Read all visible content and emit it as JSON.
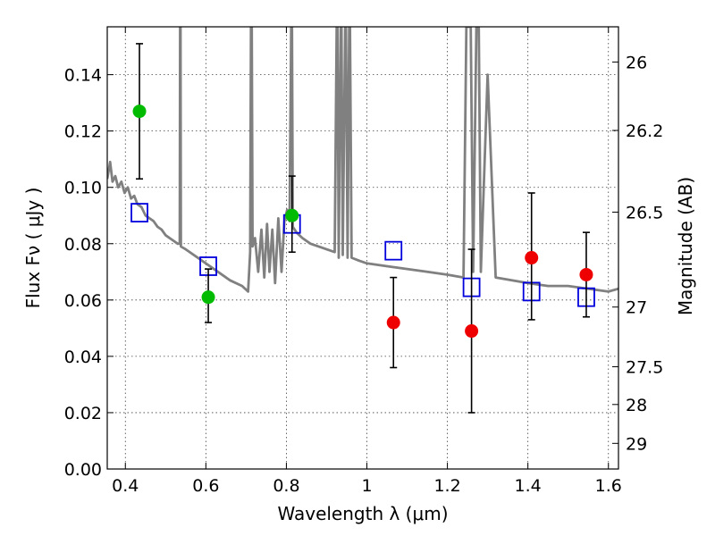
{
  "chart_data": {
    "type": "scatter",
    "title": "",
    "xlabel": "Wavelength  λ (μm)",
    "ylabel": "Flux  Fν  ( μJy )",
    "ylabel_right": "Magnitude (AB)",
    "xlim": [
      0.355,
      1.625
    ],
    "ylim": [
      0.0,
      0.157
    ],
    "grid": true,
    "x_ticks": [
      0.4,
      0.6,
      0.8,
      1.0,
      1.2,
      1.4,
      1.6
    ],
    "x_tick_labels": [
      "0.4",
      "0.6",
      "0.8",
      "1",
      "1.2",
      "1.4",
      "1.6"
    ],
    "y_ticks": [
      0.0,
      0.02,
      0.04,
      0.06,
      0.08,
      0.1,
      0.12,
      0.14
    ],
    "y_tick_labels": [
      "0.00",
      "0.02",
      "0.04",
      "0.06",
      "0.08",
      "0.10",
      "0.12",
      "0.14"
    ],
    "right_ticks": [
      {
        "label": "26",
        "flux": 0.1445
      },
      {
        "label": "26.2",
        "flux": 0.1202
      },
      {
        "label": "26.5",
        "flux": 0.0912
      },
      {
        "label": "27",
        "flux": 0.0575
      },
      {
        "label": "27.5",
        "flux": 0.0363
      },
      {
        "label": "28",
        "flux": 0.0229
      },
      {
        "label": "29",
        "flux": 0.0091
      }
    ],
    "colors": {
      "green": "#00bb00",
      "red": "#ee0000",
      "model_box": "#0000dd",
      "sed": "#808080"
    },
    "series": [
      {
        "marker": "green-circle",
        "points": [
          {
            "x": 0.435,
            "y": 0.127,
            "err_low": 0.103,
            "err_high": 0.151
          },
          {
            "x": 0.606,
            "y": 0.061,
            "err_low": 0.052,
            "err_high": 0.071
          },
          {
            "x": 0.814,
            "y": 0.09,
            "err_low": 0.077,
            "err_high": 0.104
          }
        ]
      },
      {
        "marker": "red-circle",
        "points": [
          {
            "x": 1.066,
            "y": 0.052,
            "err_low": 0.036,
            "err_high": 0.068
          },
          {
            "x": 1.26,
            "y": 0.049,
            "err_low": 0.02,
            "err_high": 0.078
          },
          {
            "x": 1.409,
            "y": 0.075,
            "err_low": 0.053,
            "err_high": 0.098
          },
          {
            "x": 1.545,
            "y": 0.069,
            "err_low": 0.054,
            "err_high": 0.084
          }
        ]
      },
      {
        "marker": "blue-open-square",
        "points": [
          {
            "x": 0.435,
            "y": 0.091
          },
          {
            "x": 0.606,
            "y": 0.072
          },
          {
            "x": 0.814,
            "y": 0.087
          },
          {
            "x": 1.066,
            "y": 0.0775
          },
          {
            "x": 1.26,
            "y": 0.0645
          },
          {
            "x": 1.409,
            "y": 0.063
          },
          {
            "x": 1.545,
            "y": 0.061
          }
        ]
      },
      {
        "marker": "gray-line",
        "points": [
          [
            0.355,
            0.103
          ],
          [
            0.362,
            0.109
          ],
          [
            0.368,
            0.102
          ],
          [
            0.375,
            0.104
          ],
          [
            0.382,
            0.1
          ],
          [
            0.39,
            0.102
          ],
          [
            0.398,
            0.098
          ],
          [
            0.406,
            0.1
          ],
          [
            0.414,
            0.096
          ],
          [
            0.422,
            0.097
          ],
          [
            0.43,
            0.094
          ],
          [
            0.44,
            0.093
          ],
          [
            0.45,
            0.09
          ],
          [
            0.46,
            0.089
          ],
          [
            0.47,
            0.088
          ],
          [
            0.48,
            0.086
          ],
          [
            0.49,
            0.085
          ],
          [
            0.5,
            0.083
          ],
          [
            0.51,
            0.082
          ],
          [
            0.52,
            0.081
          ],
          [
            0.53,
            0.08
          ],
          [
            0.535,
            0.08
          ],
          [
            0.536,
            0.157
          ],
          [
            0.537,
            0.157
          ],
          [
            0.538,
            0.079
          ],
          [
            0.55,
            0.078
          ],
          [
            0.57,
            0.076
          ],
          [
            0.6,
            0.073
          ],
          [
            0.63,
            0.07
          ],
          [
            0.66,
            0.067
          ],
          [
            0.69,
            0.065
          ],
          [
            0.705,
            0.063
          ],
          [
            0.71,
            0.077
          ],
          [
            0.712,
            0.157
          ],
          [
            0.714,
            0.157
          ],
          [
            0.716,
            0.079
          ],
          [
            0.722,
            0.082
          ],
          [
            0.73,
            0.07
          ],
          [
            0.738,
            0.085
          ],
          [
            0.745,
            0.068
          ],
          [
            0.752,
            0.087
          ],
          [
            0.758,
            0.07
          ],
          [
            0.765,
            0.085
          ],
          [
            0.772,
            0.066
          ],
          [
            0.78,
            0.089
          ],
          [
            0.788,
            0.07
          ],
          [
            0.795,
            0.088
          ],
          [
            0.802,
            0.092
          ],
          [
            0.808,
            0.088
          ],
          [
            0.812,
            0.157
          ],
          [
            0.814,
            0.157
          ],
          [
            0.816,
            0.086
          ],
          [
            0.825,
            0.084
          ],
          [
            0.84,
            0.082
          ],
          [
            0.86,
            0.08
          ],
          [
            0.88,
            0.079
          ],
          [
            0.9,
            0.078
          ],
          [
            0.92,
            0.077
          ],
          [
            0.925,
            0.157
          ],
          [
            0.927,
            0.157
          ],
          [
            0.93,
            0.075
          ],
          [
            0.935,
            0.157
          ],
          [
            0.937,
            0.157
          ],
          [
            0.94,
            0.076
          ],
          [
            0.946,
            0.157
          ],
          [
            0.948,
            0.157
          ],
          [
            0.952,
            0.075
          ],
          [
            0.956,
            0.157
          ],
          [
            0.958,
            0.157
          ],
          [
            0.962,
            0.075
          ],
          [
            0.98,
            0.074
          ],
          [
            1.0,
            0.073
          ],
          [
            1.05,
            0.072
          ],
          [
            1.1,
            0.071
          ],
          [
            1.15,
            0.07
          ],
          [
            1.2,
            0.069
          ],
          [
            1.24,
            0.068
          ],
          [
            1.247,
            0.157
          ],
          [
            1.258,
            0.157
          ],
          [
            1.264,
            0.07
          ],
          [
            1.272,
            0.157
          ],
          [
            1.278,
            0.157
          ],
          [
            1.283,
            0.07
          ],
          [
            1.3,
            0.14
          ],
          [
            1.32,
            0.068
          ],
          [
            1.4,
            0.066
          ],
          [
            1.45,
            0.065
          ],
          [
            1.5,
            0.065
          ],
          [
            1.55,
            0.064
          ],
          [
            1.6,
            0.063
          ],
          [
            1.625,
            0.064
          ]
        ]
      }
    ]
  }
}
